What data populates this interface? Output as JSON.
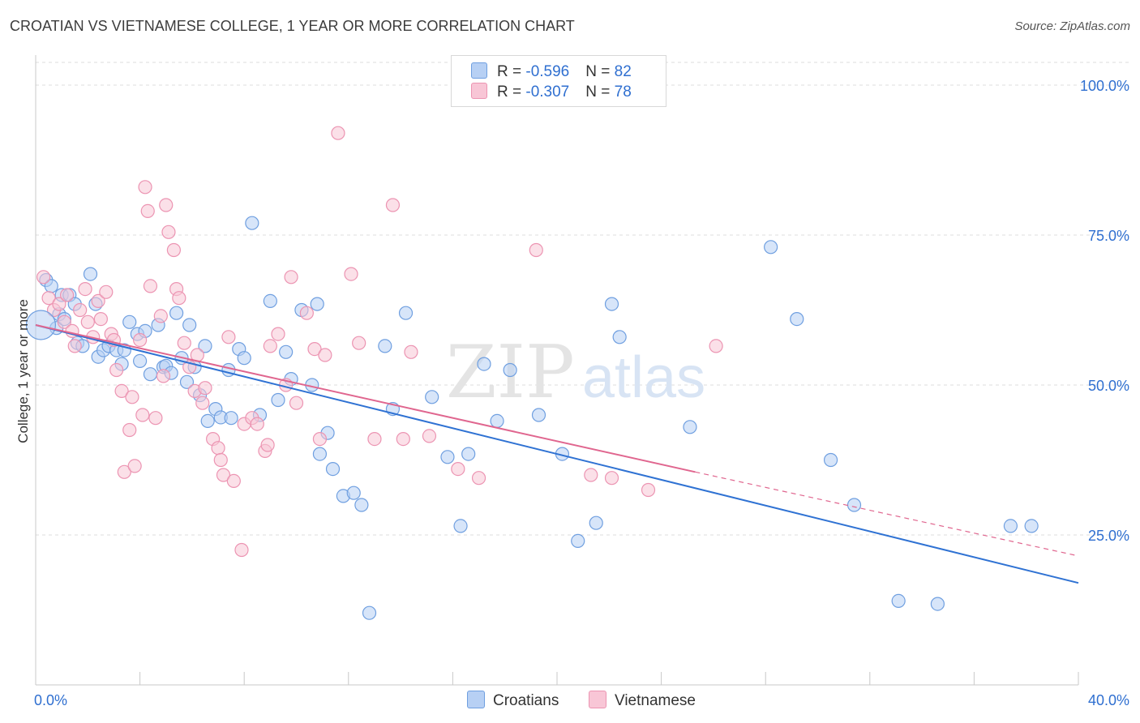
{
  "title": "CROATIAN VS VIETNAMESE COLLEGE, 1 YEAR OR MORE CORRELATION CHART",
  "source": "Source: ZipAtlas.com",
  "watermark": {
    "zip": "ZIP",
    "atlas": "atlas"
  },
  "legend": {
    "rows": [
      {
        "r_label": "R = ",
        "r_value": "-0.596",
        "n_label": "N = ",
        "n_value": "82",
        "color": "#6f9fe0"
      },
      {
        "r_label": "R = ",
        "r_value": "-0.307",
        "n_label": "N = ",
        "n_value": "78",
        "color": "#f19bb6"
      }
    ]
  },
  "bottom_legend": {
    "croatians": "Croatians",
    "vietnamese": "Vietnamese"
  },
  "colors": {
    "blue_fill": "#b7d0f4",
    "blue_stroke": "#6f9fe0",
    "blue_line": "#2f72d3",
    "pink_fill": "#f8c6d6",
    "pink_stroke": "#ec94b2",
    "pink_line": "#e0668f",
    "grid": "#dedede"
  },
  "chart_data": {
    "type": "scatter",
    "ylabel": "College, 1 year or more",
    "xlabel": "",
    "xlim": [
      0,
      40
    ],
    "ylim": [
      0,
      105
    ],
    "x_tick_labels": {
      "min": "0.0%",
      "max": "40.0%"
    },
    "y_ticks": [
      25,
      50,
      75,
      100
    ],
    "y_tick_labels": [
      "25.0%",
      "50.0%",
      "75.0%",
      "100.0%"
    ],
    "grid": "horizontal dashed",
    "legend_position": "top-center",
    "series": [
      {
        "name": "Croatians",
        "R": -0.596,
        "N": 82,
        "trend": {
          "x": [
            0,
            40
          ],
          "y": [
            60.0,
            17.0
          ],
          "style": "solid"
        },
        "points": [
          [
            0.4,
            67.5
          ],
          [
            0.6,
            66.5
          ],
          [
            0.8,
            59.5
          ],
          [
            0.9,
            61.8
          ],
          [
            1.0,
            65.0
          ],
          [
            1.1,
            61.0
          ],
          [
            1.3,
            65.0
          ],
          [
            1.5,
            63.5
          ],
          [
            1.6,
            57.0
          ],
          [
            1.8,
            56.5
          ],
          [
            2.1,
            68.5
          ],
          [
            2.3,
            63.5
          ],
          [
            2.4,
            54.7
          ],
          [
            2.6,
            55.8
          ],
          [
            2.8,
            56.5
          ],
          [
            3.1,
            55.8
          ],
          [
            3.3,
            53.5
          ],
          [
            3.4,
            55.8
          ],
          [
            3.6,
            60.5
          ],
          [
            3.9,
            58.5
          ],
          [
            4.0,
            54.0
          ],
          [
            4.2,
            59.0
          ],
          [
            4.4,
            51.8
          ],
          [
            4.7,
            60.0
          ],
          [
            4.9,
            53.0
          ],
          [
            5.0,
            53.2
          ],
          [
            5.2,
            52.0
          ],
          [
            5.4,
            62.0
          ],
          [
            5.6,
            54.5
          ],
          [
            5.8,
            50.5
          ],
          [
            5.9,
            60.0
          ],
          [
            6.1,
            53.0
          ],
          [
            6.3,
            48.3
          ],
          [
            6.5,
            56.5
          ],
          [
            6.6,
            44.0
          ],
          [
            6.9,
            46.0
          ],
          [
            7.1,
            44.6
          ],
          [
            7.4,
            52.5
          ],
          [
            7.5,
            44.5
          ],
          [
            7.8,
            56.0
          ],
          [
            8.0,
            54.5
          ],
          [
            8.3,
            77.0
          ],
          [
            8.6,
            45.0
          ],
          [
            9.0,
            64.0
          ],
          [
            9.3,
            47.5
          ],
          [
            9.6,
            55.5
          ],
          [
            9.8,
            51.0
          ],
          [
            10.2,
            62.5
          ],
          [
            10.6,
            50.0
          ],
          [
            10.8,
            63.5
          ],
          [
            10.9,
            38.5
          ],
          [
            11.2,
            42.0
          ],
          [
            11.4,
            36.0
          ],
          [
            11.8,
            31.5
          ],
          [
            12.2,
            32.0
          ],
          [
            12.5,
            30.0
          ],
          [
            12.8,
            12.0
          ],
          [
            13.4,
            56.5
          ],
          [
            13.7,
            46.0
          ],
          [
            14.2,
            62.0
          ],
          [
            15.2,
            48.0
          ],
          [
            15.8,
            38.0
          ],
          [
            16.3,
            26.5
          ],
          [
            16.6,
            38.5
          ],
          [
            17.2,
            53.5
          ],
          [
            17.7,
            44.0
          ],
          [
            18.2,
            52.5
          ],
          [
            19.3,
            45.0
          ],
          [
            20.2,
            38.5
          ],
          [
            20.8,
            24.0
          ],
          [
            21.5,
            27.0
          ],
          [
            22.1,
            63.5
          ],
          [
            22.4,
            58.0
          ],
          [
            25.1,
            43.0
          ],
          [
            28.2,
            73.0
          ],
          [
            29.2,
            61.0
          ],
          [
            30.5,
            37.5
          ],
          [
            31.4,
            30.0
          ],
          [
            33.1,
            14.0
          ],
          [
            34.6,
            13.5
          ],
          [
            37.4,
            26.5
          ],
          [
            38.2,
            26.5
          ]
        ]
      },
      {
        "name": "Vietnamese",
        "R": -0.307,
        "N": 78,
        "trend": {
          "x": [
            0,
            25.3
          ],
          "y": [
            60.0,
            35.5
          ],
          "style": "solid",
          "extension_to": [
            40,
            21.5
          ]
        },
        "points": [
          [
            0.3,
            68.0
          ],
          [
            0.5,
            64.5
          ],
          [
            0.7,
            62.5
          ],
          [
            0.9,
            63.5
          ],
          [
            1.1,
            60.5
          ],
          [
            1.2,
            65.0
          ],
          [
            1.4,
            59.0
          ],
          [
            1.5,
            56.5
          ],
          [
            1.7,
            62.5
          ],
          [
            1.9,
            66.0
          ],
          [
            2.0,
            60.5
          ],
          [
            2.2,
            58.0
          ],
          [
            2.4,
            64.0
          ],
          [
            2.5,
            61.0
          ],
          [
            2.7,
            65.5
          ],
          [
            2.9,
            58.5
          ],
          [
            3.0,
            57.5
          ],
          [
            3.1,
            52.5
          ],
          [
            3.3,
            49.0
          ],
          [
            3.4,
            35.5
          ],
          [
            3.6,
            42.5
          ],
          [
            3.7,
            48.0
          ],
          [
            3.8,
            36.5
          ],
          [
            4.0,
            57.5
          ],
          [
            4.1,
            45.0
          ],
          [
            4.2,
            83.0
          ],
          [
            4.3,
            79.0
          ],
          [
            4.4,
            66.5
          ],
          [
            4.6,
            44.5
          ],
          [
            4.8,
            61.5
          ],
          [
            4.9,
            51.5
          ],
          [
            5.0,
            80.0
          ],
          [
            5.1,
            75.5
          ],
          [
            5.3,
            72.5
          ],
          [
            5.4,
            66.0
          ],
          [
            5.5,
            64.5
          ],
          [
            5.7,
            57.0
          ],
          [
            5.9,
            53.0
          ],
          [
            6.1,
            49.0
          ],
          [
            6.2,
            55.0
          ],
          [
            6.4,
            47.0
          ],
          [
            6.5,
            49.5
          ],
          [
            6.8,
            41.0
          ],
          [
            7.0,
            39.5
          ],
          [
            7.1,
            37.5
          ],
          [
            7.2,
            35.0
          ],
          [
            7.4,
            58.0
          ],
          [
            7.6,
            34.0
          ],
          [
            7.9,
            22.5
          ],
          [
            8.0,
            43.5
          ],
          [
            8.3,
            44.5
          ],
          [
            8.5,
            43.5
          ],
          [
            8.8,
            39.0
          ],
          [
            9.0,
            56.5
          ],
          [
            9.3,
            58.5
          ],
          [
            9.6,
            50.0
          ],
          [
            9.8,
            68.0
          ],
          [
            10.0,
            47.0
          ],
          [
            10.4,
            62.0
          ],
          [
            10.7,
            56.0
          ],
          [
            10.9,
            41.0
          ],
          [
            11.1,
            55.0
          ],
          [
            11.6,
            92.0
          ],
          [
            12.1,
            68.5
          ],
          [
            12.4,
            57.0
          ],
          [
            13.0,
            41.0
          ],
          [
            13.7,
            80.0
          ],
          [
            14.1,
            41.0
          ],
          [
            14.4,
            55.5
          ],
          [
            15.1,
            41.5
          ],
          [
            16.2,
            36.0
          ],
          [
            17.0,
            34.5
          ],
          [
            19.2,
            72.5
          ],
          [
            21.3,
            35.0
          ],
          [
            22.1,
            34.5
          ],
          [
            23.5,
            32.5
          ],
          [
            26.1,
            56.5
          ],
          [
            8.9,
            40.0
          ]
        ]
      }
    ]
  }
}
